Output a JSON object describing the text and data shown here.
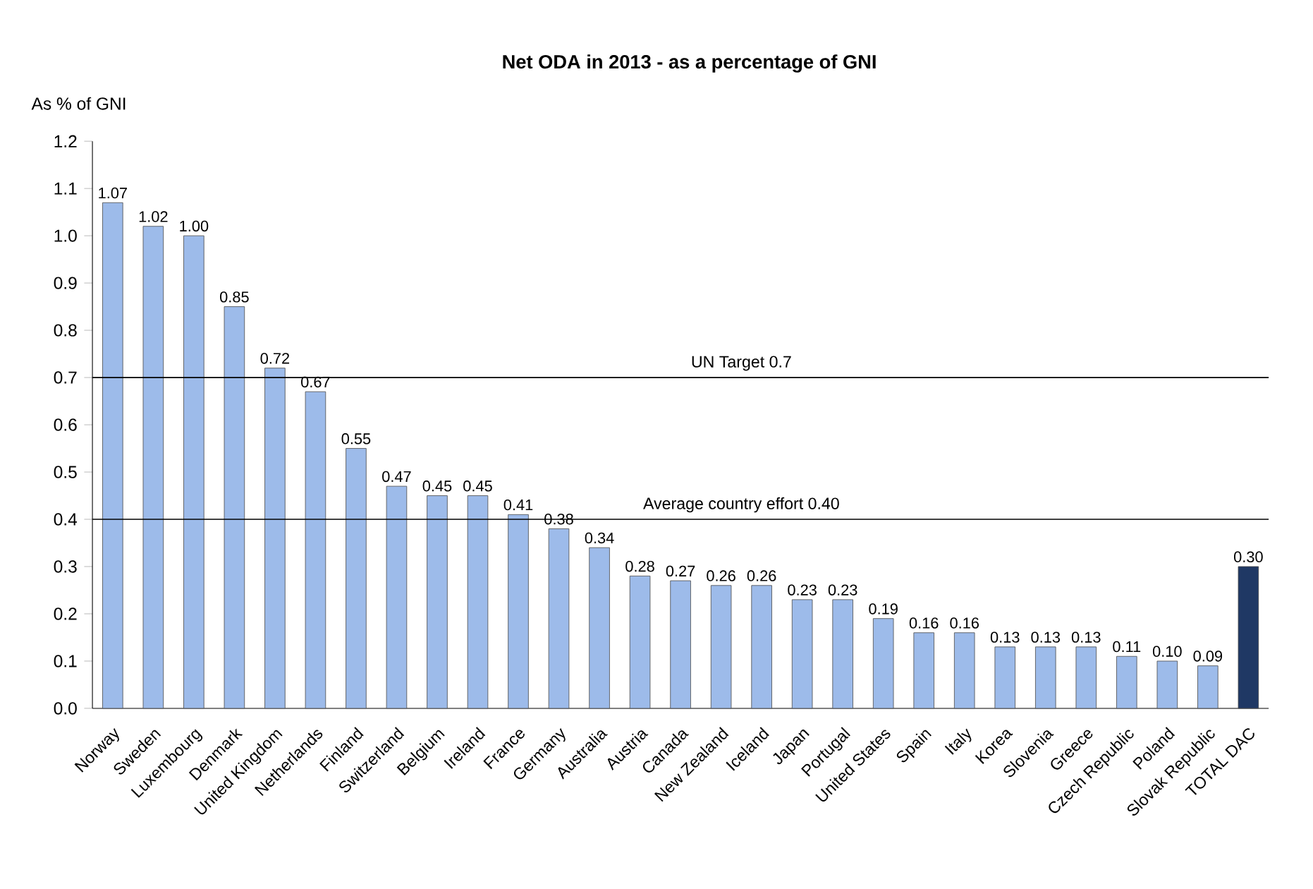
{
  "chart_data": {
    "type": "bar",
    "title": "Net ODA in 2013 - as a percentage of GNI",
    "ylabel": "As % of GNI",
    "categories": [
      "Norway",
      "Sweden",
      "Luxembourg",
      "Denmark",
      "United Kingdom",
      "Netherlands",
      "Finland",
      "Switzerland",
      "Belgium",
      "Ireland",
      "France",
      "Germany",
      "Australia",
      "Austria",
      "Canada",
      "New Zealand",
      "Iceland",
      "Japan",
      "Portugal",
      "United States",
      "Spain",
      "Italy",
      "Korea",
      "Slovenia",
      "Greece",
      "Czech Republic",
      "Poland",
      "Slovak Republic",
      "TOTAL DAC"
    ],
    "values": [
      1.07,
      1.02,
      1.0,
      0.85,
      0.72,
      0.67,
      0.55,
      0.47,
      0.45,
      0.45,
      0.41,
      0.38,
      0.34,
      0.28,
      0.27,
      0.26,
      0.26,
      0.23,
      0.23,
      0.19,
      0.16,
      0.16,
      0.13,
      0.13,
      0.13,
      0.11,
      0.1,
      0.09,
      0.3
    ],
    "value_labels": [
      "1.07",
      "1.02",
      "1.00",
      "0.85",
      "0.72",
      "0.67",
      "0.55",
      "0.47",
      "0.45",
      "0.45",
      "0.41",
      "0.38",
      "0.34",
      "0.28",
      "0.27",
      "0.26",
      "0.26",
      "0.23",
      "0.23",
      "0.19",
      "0.16",
      "0.16",
      "0.13",
      "0.13",
      "0.13",
      "0.11",
      "0.10",
      "0.09",
      "0.30"
    ],
    "colors": [
      "#9dbbea",
      "#9dbbea",
      "#9dbbea",
      "#9dbbea",
      "#9dbbea",
      "#9dbbea",
      "#9dbbea",
      "#9dbbea",
      "#9dbbea",
      "#9dbbea",
      "#9dbbea",
      "#9dbbea",
      "#9dbbea",
      "#9dbbea",
      "#9dbbea",
      "#9dbbea",
      "#9dbbea",
      "#9dbbea",
      "#9dbbea",
      "#9dbbea",
      "#9dbbea",
      "#9dbbea",
      "#9dbbea",
      "#9dbbea",
      "#9dbbea",
      "#9dbbea",
      "#9dbbea",
      "#9dbbea",
      "#1f3864"
    ],
    "ylim": [
      0,
      1.2
    ],
    "yticks": [
      {
        "value": 0,
        "label": "0.0"
      },
      {
        "value": 0.1,
        "label": "0.1"
      },
      {
        "value": 0.2,
        "label": "0.2"
      },
      {
        "value": 0.3,
        "label": "0.3"
      },
      {
        "value": 0.4,
        "label": "0.4"
      },
      {
        "value": 0.5,
        "label": "0.5"
      },
      {
        "value": 0.6,
        "label": "0.6"
      },
      {
        "value": 0.7,
        "label": "0.7"
      },
      {
        "value": 0.8,
        "label": "0.8"
      },
      {
        "value": 0.9,
        "label": "0.9"
      },
      {
        "value": 1.0,
        "label": "1.0"
      },
      {
        "value": 1.1,
        "label": "1.1"
      },
      {
        "value": 1.2,
        "label": "1.2"
      }
    ],
    "ref_lines": [
      {
        "axis": "y",
        "value": 0.7,
        "label": "UN Target 0.7",
        "color": "#000000"
      },
      {
        "axis": "y",
        "value": 0.4,
        "label": "Average country effort 0.40",
        "color": "#000000"
      }
    ]
  }
}
